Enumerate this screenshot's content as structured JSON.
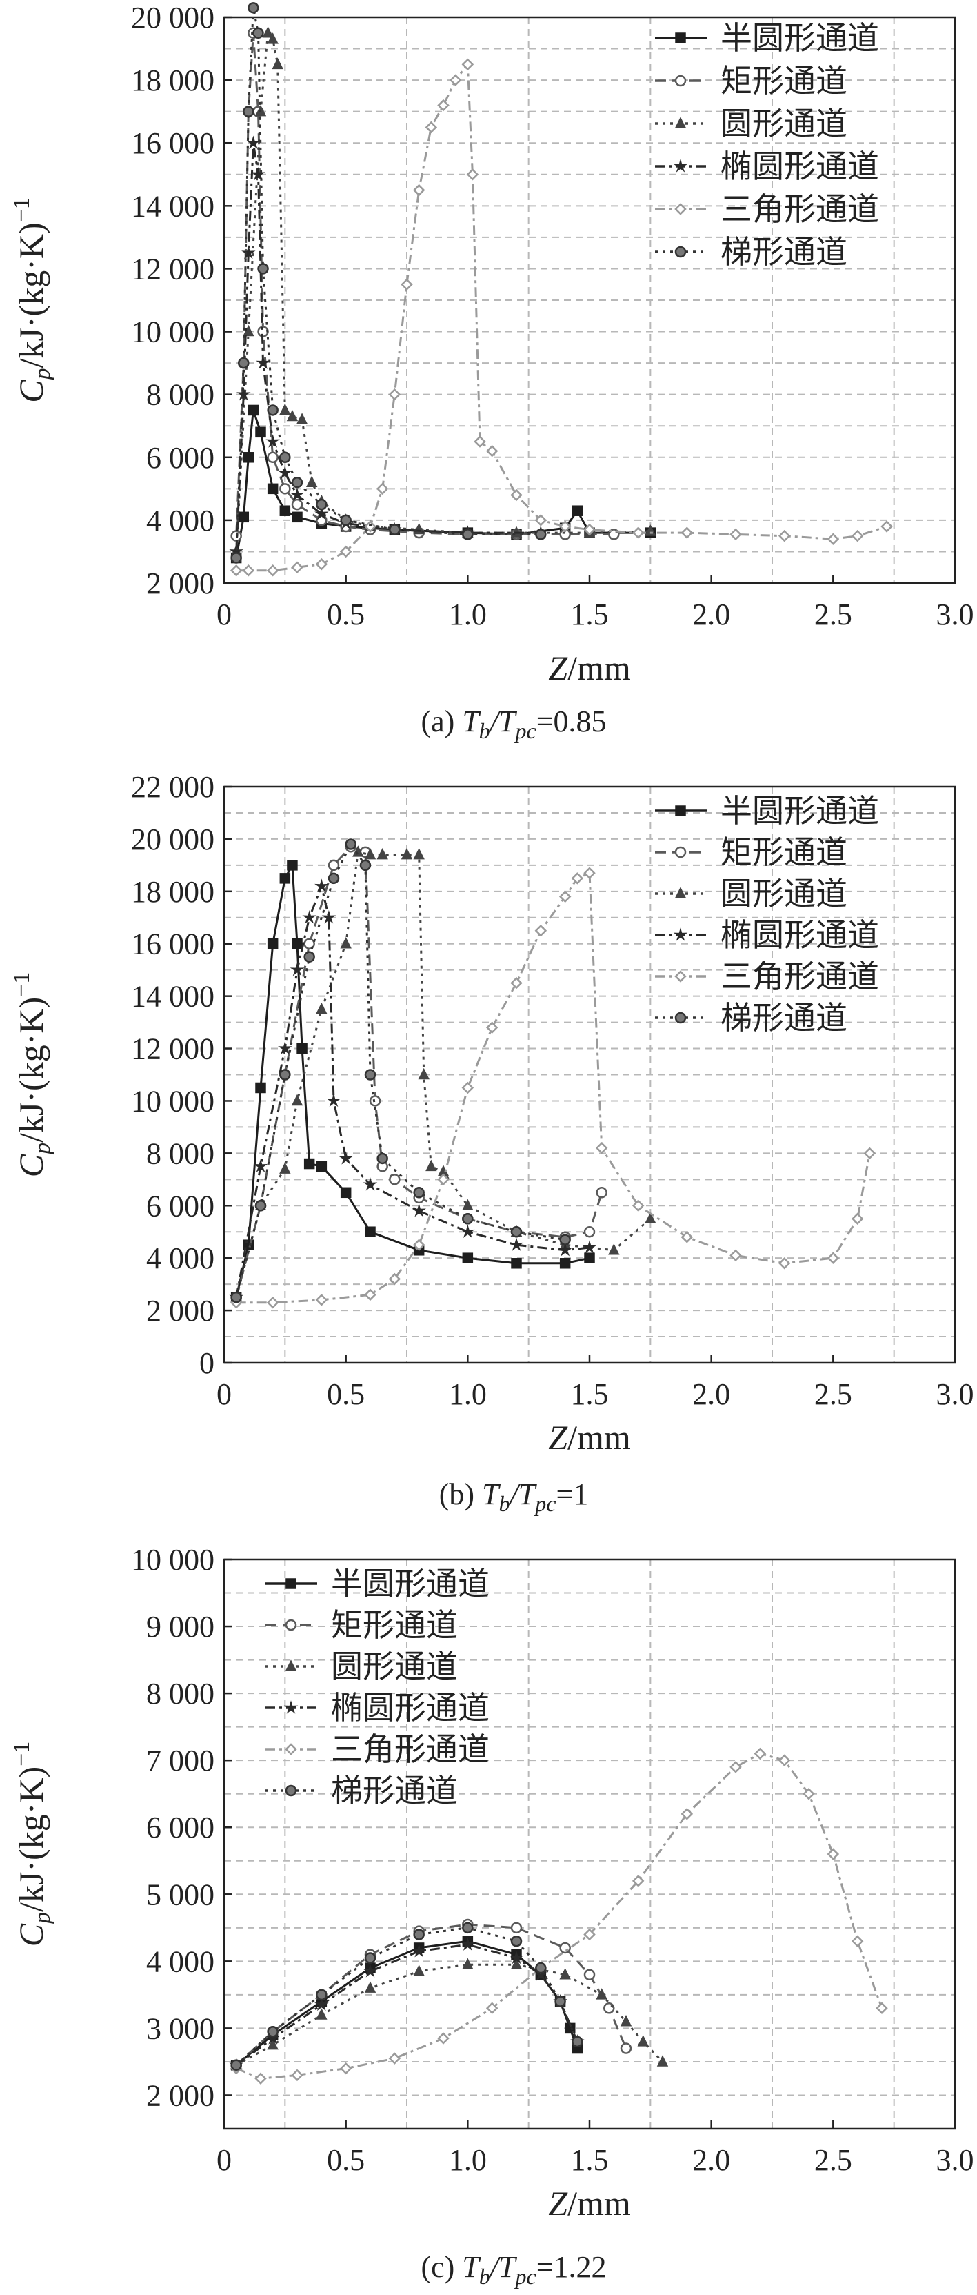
{
  "chart_data": [
    {
      "type": "line",
      "caption": {
        "prefix": "(a) ",
        "t": "T",
        "b": "b",
        "slash": "/T",
        "pc": "pc",
        "rest": "=0.85"
      },
      "xlabel": {
        "italic": "Z",
        "rest": "/mm"
      },
      "ylabel": {
        "c": "C",
        "p": "p",
        "rest": "/kJ·(kg·K)",
        "sup": "−1"
      },
      "xlim": [
        0,
        3.0
      ],
      "ylim": [
        2000,
        20000
      ],
      "xticks": [
        "0",
        "0.5",
        "1.0",
        "1.5",
        "2.0",
        "2.5",
        "3.0"
      ],
      "yticks": [
        "2 000",
        "4 000",
        "6 000",
        "8 000",
        "10 000",
        "12 000",
        "14 000",
        "16 000",
        "18 000",
        "20 000"
      ],
      "legend_position": "top-right",
      "series": [
        {
          "name": "半圆形通道",
          "style": "solid",
          "marker": "square",
          "color": "#1e1e1e",
          "x": [
            0.05,
            0.08,
            0.1,
            0.12,
            0.15,
            0.2,
            0.25,
            0.3,
            0.4,
            0.5,
            0.7,
            1.0,
            1.2,
            1.4,
            1.45,
            1.5,
            1.75
          ],
          "y": [
            2800,
            4100,
            6000,
            7500,
            6800,
            5000,
            4300,
            4100,
            3900,
            3800,
            3700,
            3600,
            3550,
            3750,
            4300,
            3600,
            3600
          ]
        },
        {
          "name": "矩形通道",
          "style": "dash",
          "marker": "circle",
          "color": "#5a5a5a",
          "x": [
            0.05,
            0.08,
            0.1,
            0.12,
            0.14,
            0.16,
            0.2,
            0.25,
            0.3,
            0.4,
            0.5,
            0.6,
            0.8,
            1.0,
            1.2,
            1.4,
            1.6
          ],
          "y": [
            3500,
            9000,
            17000,
            19500,
            17000,
            10000,
            6000,
            5000,
            4500,
            4000,
            3800,
            3700,
            3600,
            3550,
            3550,
            3550,
            3550
          ]
        },
        {
          "name": "圆形通道",
          "style": "dot",
          "marker": "triangle",
          "color": "#444444",
          "x": [
            0.05,
            0.1,
            0.15,
            0.18,
            0.2,
            0.22,
            0.25,
            0.28,
            0.32,
            0.36,
            0.4,
            0.5,
            0.6,
            0.8,
            1.0,
            1.2,
            1.5,
            1.75
          ],
          "y": [
            3000,
            10000,
            17000,
            19500,
            19300,
            18500,
            7500,
            7300,
            7200,
            5200,
            4600,
            4000,
            3800,
            3700,
            3600,
            3600,
            3600,
            3650
          ]
        },
        {
          "name": "椭圆形通道",
          "style": "dashdot",
          "marker": "star",
          "color": "#2a2a2a",
          "x": [
            0.05,
            0.08,
            0.1,
            0.12,
            0.14,
            0.16,
            0.2,
            0.25,
            0.3,
            0.4,
            0.5,
            0.7,
            1.0,
            1.3
          ],
          "y": [
            3000,
            8000,
            12500,
            16000,
            15000,
            9000,
            6500,
            5500,
            4800,
            4200,
            3900,
            3700,
            3600,
            3600
          ]
        },
        {
          "name": "三角形通道",
          "style": "dashdot",
          "marker": "diamond",
          "color": "#9a9a9a",
          "x": [
            0.05,
            0.1,
            0.2,
            0.3,
            0.4,
            0.5,
            0.6,
            0.65,
            0.7,
            0.75,
            0.8,
            0.85,
            0.9,
            0.95,
            1.0,
            1.02,
            1.05,
            1.1,
            1.2,
            1.3,
            1.4,
            1.5,
            1.7,
            1.9,
            2.1,
            2.3,
            2.5,
            2.6,
            2.72
          ],
          "y": [
            2400,
            2400,
            2400,
            2500,
            2600,
            3000,
            3800,
            5000,
            8000,
            11500,
            14500,
            16500,
            17200,
            18000,
            18500,
            15000,
            6500,
            6200,
            4800,
            4000,
            3800,
            3700,
            3600,
            3600,
            3550,
            3500,
            3400,
            3500,
            3800
          ]
        },
        {
          "name": "梯形通道",
          "style": "dot",
          "marker": "circle-half",
          "color": "#333333",
          "x": [
            0.05,
            0.08,
            0.1,
            0.12,
            0.14,
            0.16,
            0.2,
            0.25,
            0.3,
            0.4,
            0.5,
            0.7,
            1.0,
            1.3
          ],
          "y": [
            2800,
            9000,
            17000,
            20300,
            19500,
            12000,
            7500,
            6000,
            5200,
            4500,
            4000,
            3700,
            3550,
            3550
          ]
        }
      ]
    },
    {
      "type": "line",
      "caption": {
        "prefix": "(b) ",
        "t": "T",
        "b": "b",
        "slash": "/T",
        "pc": "pc",
        "rest": "=1"
      },
      "xlabel": {
        "italic": "Z",
        "rest": "/mm"
      },
      "ylabel": {
        "c": "C",
        "p": "p",
        "rest": "/kJ·(kg·K)",
        "sup": "−1"
      },
      "xlim": [
        0,
        3.0
      ],
      "ylim": [
        0,
        22000
      ],
      "xticks": [
        "0",
        "0.5",
        "1.0",
        "1.5",
        "2.0",
        "2.5",
        "3.0"
      ],
      "yticks": [
        "0",
        "2 000",
        "4 000",
        "6 000",
        "8 000",
        "10 000",
        "12 000",
        "14 000",
        "16 000",
        "18 000",
        "20 000",
        "22 000"
      ],
      "legend_position": "top-right",
      "series": [
        {
          "name": "半圆形通道",
          "style": "solid",
          "marker": "square",
          "color": "#1e1e1e",
          "x": [
            0.05,
            0.1,
            0.15,
            0.2,
            0.25,
            0.28,
            0.3,
            0.32,
            0.35,
            0.4,
            0.5,
            0.6,
            0.8,
            1.0,
            1.2,
            1.4,
            1.5
          ],
          "y": [
            2500,
            4500,
            10500,
            16000,
            18500,
            19000,
            16000,
            12000,
            7600,
            7500,
            6500,
            5000,
            4300,
            4000,
            3800,
            3800,
            4000
          ]
        },
        {
          "name": "矩形通道",
          "style": "dash",
          "marker": "circle",
          "color": "#5a5a5a",
          "x": [
            0.05,
            0.15,
            0.25,
            0.35,
            0.45,
            0.52,
            0.58,
            0.62,
            0.65,
            0.7,
            0.8,
            1.0,
            1.2,
            1.4,
            1.5,
            1.55
          ],
          "y": [
            2500,
            6000,
            11000,
            16000,
            19000,
            19700,
            19500,
            10000,
            7500,
            7000,
            6300,
            5500,
            5000,
            4800,
            5000,
            6500
          ]
        },
        {
          "name": "圆形通道",
          "style": "dot",
          "marker": "triangle",
          "color": "#444444",
          "x": [
            0.05,
            0.15,
            0.25,
            0.3,
            0.4,
            0.5,
            0.55,
            0.6,
            0.65,
            0.75,
            0.8,
            0.82,
            0.85,
            0.9,
            1.0,
            1.2,
            1.4,
            1.6,
            1.75
          ],
          "y": [
            2500,
            6000,
            7400,
            10000,
            13500,
            16000,
            19500,
            19400,
            19400,
            19400,
            19400,
            11000,
            7500,
            7300,
            6000,
            5000,
            4500,
            4300,
            5500
          ]
        },
        {
          "name": "椭圆形通道",
          "style": "dashdot",
          "marker": "star",
          "color": "#2a2a2a",
          "x": [
            0.05,
            0.15,
            0.25,
            0.3,
            0.35,
            0.4,
            0.43,
            0.45,
            0.5,
            0.6,
            0.8,
            1.0,
            1.2,
            1.4,
            1.5
          ],
          "y": [
            2500,
            7500,
            12000,
            15000,
            17000,
            18200,
            17000,
            10000,
            7800,
            6800,
            5800,
            5000,
            4500,
            4300,
            4400
          ]
        },
        {
          "name": "三角形通道",
          "style": "dashdot",
          "marker": "diamond",
          "color": "#9a9a9a",
          "x": [
            0.05,
            0.2,
            0.4,
            0.6,
            0.7,
            0.8,
            0.9,
            1.0,
            1.1,
            1.2,
            1.3,
            1.4,
            1.45,
            1.5,
            1.55,
            1.7,
            1.9,
            2.1,
            2.3,
            2.5,
            2.6,
            2.65
          ],
          "y": [
            2300,
            2300,
            2400,
            2600,
            3200,
            4500,
            7000,
            10500,
            12800,
            14500,
            16500,
            17800,
            18500,
            18700,
            8200,
            6000,
            4800,
            4100,
            3800,
            4000,
            5500,
            8000
          ]
        },
        {
          "name": "梯形通道",
          "style": "dot",
          "marker": "circle-half",
          "color": "#333333",
          "x": [
            0.05,
            0.15,
            0.25,
            0.35,
            0.45,
            0.52,
            0.58,
            0.6,
            0.65,
            0.8,
            1.0,
            1.2,
            1.4
          ],
          "y": [
            2500,
            6000,
            11000,
            15500,
            18500,
            19800,
            19000,
            11000,
            7800,
            6500,
            5500,
            5000,
            4700
          ]
        }
      ]
    },
    {
      "type": "line",
      "caption": {
        "prefix": "(c) ",
        "t": "T",
        "b": "b",
        "slash": "/T",
        "pc": "pc",
        "rest": "=1.22"
      },
      "xlabel": {
        "italic": "Z",
        "rest": "/mm"
      },
      "ylabel": {
        "c": "C",
        "p": "p",
        "rest": "/kJ·(kg·K)",
        "sup": "−1"
      },
      "xlim": [
        0,
        3.0
      ],
      "ylim": [
        1500,
        10000
      ],
      "xticks": [
        "0",
        "0.5",
        "1.0",
        "1.5",
        "2.0",
        "2.5",
        "3.0"
      ],
      "yticks": [
        "2 000",
        "3 000",
        "4 000",
        "5 000",
        "6 000",
        "7 000",
        "8 000",
        "9 000",
        "10 000"
      ],
      "legend_position": "top-left",
      "series": [
        {
          "name": "半圆形通道",
          "style": "solid",
          "marker": "square",
          "color": "#1e1e1e",
          "x": [
            0.05,
            0.2,
            0.4,
            0.6,
            0.8,
            1.0,
            1.2,
            1.3,
            1.38,
            1.42,
            1.45
          ],
          "y": [
            2450,
            2900,
            3400,
            3900,
            4200,
            4300,
            4100,
            3800,
            3400,
            3000,
            2700
          ]
        },
        {
          "name": "矩形通道",
          "style": "dash",
          "marker": "circle",
          "color": "#5a5a5a",
          "x": [
            0.05,
            0.2,
            0.4,
            0.6,
            0.8,
            1.0,
            1.2,
            1.4,
            1.5,
            1.58,
            1.65
          ],
          "y": [
            2450,
            2950,
            3500,
            4100,
            4450,
            4550,
            4500,
            4200,
            3800,
            3300,
            2700
          ]
        },
        {
          "name": "圆形通道",
          "style": "dot",
          "marker": "triangle",
          "color": "#444444",
          "x": [
            0.05,
            0.2,
            0.4,
            0.6,
            0.8,
            1.0,
            1.2,
            1.4,
            1.55,
            1.65,
            1.72,
            1.8
          ],
          "y": [
            2450,
            2750,
            3200,
            3600,
            3850,
            3950,
            3950,
            3800,
            3500,
            3100,
            2800,
            2500
          ]
        },
        {
          "name": "椭圆形通道",
          "style": "dashdot",
          "marker": "star",
          "color": "#2a2a2a",
          "x": [
            0.05,
            0.2,
            0.4,
            0.6,
            0.8,
            1.0,
            1.2,
            1.3,
            1.38,
            1.45
          ],
          "y": [
            2450,
            2850,
            3350,
            3850,
            4150,
            4250,
            4050,
            3800,
            3400,
            2800
          ]
        },
        {
          "name": "三角形通道",
          "style": "dashdot",
          "marker": "diamond",
          "color": "#9a9a9a",
          "x": [
            0.05,
            0.15,
            0.3,
            0.5,
            0.7,
            0.9,
            1.1,
            1.3,
            1.5,
            1.7,
            1.9,
            2.1,
            2.2,
            2.3,
            2.4,
            2.5,
            2.6,
            2.7
          ],
          "y": [
            2400,
            2250,
            2300,
            2400,
            2550,
            2850,
            3300,
            3900,
            4400,
            5200,
            6200,
            6900,
            7100,
            7000,
            6500,
            5600,
            4300,
            3300
          ]
        },
        {
          "name": "梯形通道",
          "style": "dot",
          "marker": "circle-half",
          "color": "#333333",
          "x": [
            0.05,
            0.2,
            0.4,
            0.6,
            0.8,
            1.0,
            1.2,
            1.3,
            1.38,
            1.45
          ],
          "y": [
            2450,
            2950,
            3500,
            4050,
            4400,
            4500,
            4300,
            3900,
            3400,
            2800
          ]
        }
      ]
    }
  ]
}
